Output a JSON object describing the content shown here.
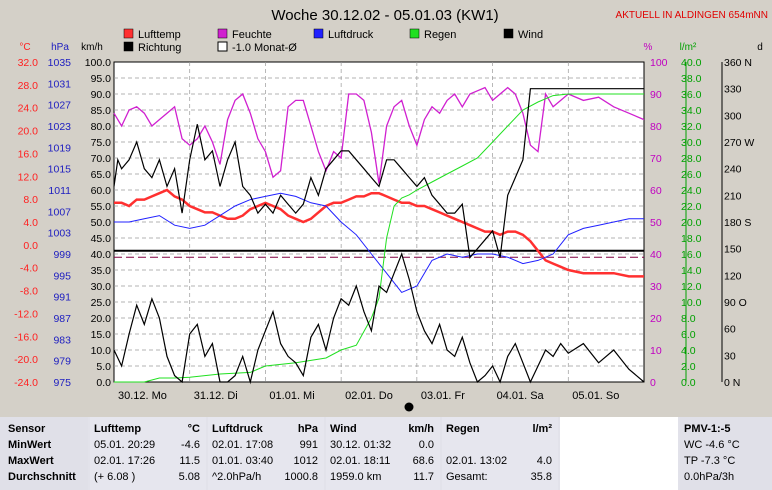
{
  "chart_data": {
    "type": "line",
    "title": "Woche 30.12.02 - 05.01.03 (KW1)",
    "subtitle": "AKTUELL IN ALDINGEN 654mNN",
    "legend": [
      {
        "name": "Lufttemp",
        "color": "#ff3030"
      },
      {
        "name": "Feuchte",
        "color": "#d020d0"
      },
      {
        "name": "Luftdruck",
        "color": "#2020ff"
      },
      {
        "name": "Regen",
        "color": "#20e020"
      },
      {
        "name": "Wind",
        "color": "#000000"
      },
      {
        "name": "Richtung",
        "color": "#000000"
      },
      {
        "name": "-1.0 Monat-Ø",
        "color": "#ffffff"
      }
    ],
    "axes": [
      {
        "unit": "°C",
        "color": "#ff2020",
        "ticks": [
          "32.0",
          "28.0",
          "24.0",
          "20.0",
          "16.0",
          "12.0",
          "8.0",
          "4.0",
          "0.0",
          "-4.0",
          "-8.0",
          "-12.0",
          "-16.0",
          "-20.0",
          "-24.0"
        ]
      },
      {
        "unit": "hPa",
        "color": "#2020c0",
        "ticks": [
          "1035",
          "1031",
          "1027",
          "1023",
          "1019",
          "1015",
          "1011",
          "1007",
          "1003",
          "999",
          "995",
          "991",
          "987",
          "983",
          "979",
          "975"
        ]
      },
      {
        "unit": "km/h",
        "color": "#000000",
        "ticks": [
          "100.0",
          "95.0",
          "90.0",
          "85.0",
          "80.0",
          "75.0",
          "70.0",
          "65.0",
          "60.0",
          "55.0",
          "50.0",
          "45.0",
          "40.0",
          "35.0",
          "30.0",
          "25.0",
          "20.0",
          "15.0",
          "10.0",
          "5.0",
          "0.0"
        ]
      },
      {
        "unit": "%",
        "color": "#c000c0",
        "ticks": [
          "100",
          "90",
          "80",
          "70",
          "60",
          "50",
          "40",
          "30",
          "20",
          "10",
          "0"
        ]
      },
      {
        "unit": "l/m²",
        "color": "#00a000",
        "ticks": [
          "40.0",
          "38.0",
          "36.0",
          "34.0",
          "32.0",
          "30.0",
          "28.0",
          "26.0",
          "24.0",
          "22.0",
          "20.0",
          "18.0",
          "16.0",
          "14.0",
          "12.0",
          "10.0",
          "8.0",
          "6.0",
          "4.0",
          "2.0",
          "0.0"
        ]
      },
      {
        "unit": "d",
        "color": "#000000",
        "ticks": [
          "360 N",
          "330",
          "300",
          "270 W",
          "240",
          "210",
          "180 S",
          "150",
          "120",
          "90 O",
          "60",
          "30",
          "0 N"
        ]
      }
    ],
    "x_ticks": [
      "30.12. Mo",
      "31.12. Di",
      "01.01. Mi",
      "02.01. Do",
      "03.01. Fr",
      "04.01. Sa",
      "05.01. So"
    ],
    "x_range_days": [
      0,
      7
    ],
    "wind_range": [
      0,
      100
    ],
    "reference_wind_level": 41,
    "reference_dashed_level": 39,
    "series": [
      {
        "name": "Lufttemp",
        "unit": "km/h-scale",
        "color": "#ff3030",
        "x": [
          0,
          0.1,
          0.2,
          0.3,
          0.4,
          0.5,
          0.6,
          0.7,
          0.8,
          0.9,
          1.0,
          1.1,
          1.2,
          1.3,
          1.4,
          1.5,
          1.6,
          1.7,
          1.8,
          1.9,
          2.0,
          2.1,
          2.2,
          2.3,
          2.4,
          2.5,
          2.6,
          2.7,
          2.8,
          2.9,
          3.0,
          3.1,
          3.2,
          3.3,
          3.4,
          3.5,
          3.6,
          3.7,
          3.8,
          3.9,
          4.0,
          4.1,
          4.2,
          4.3,
          4.4,
          4.5,
          4.6,
          4.7,
          4.8,
          4.9,
          5.0,
          5.1,
          5.2,
          5.3,
          5.4,
          5.5,
          5.6,
          5.7,
          5.8,
          5.9,
          6.0,
          6.2,
          6.4,
          6.6,
          6.8,
          7.0
        ],
        "y": [
          56,
          56,
          55,
          57,
          57,
          58,
          59,
          60,
          58,
          57,
          55,
          54,
          53,
          53,
          52,
          51,
          51,
          52,
          54,
          55,
          56,
          55,
          54,
          52,
          51,
          50,
          51,
          53,
          55,
          56,
          56,
          57,
          58,
          58,
          59,
          59,
          58,
          57,
          56,
          56,
          55,
          55,
          54,
          53,
          52,
          51,
          50,
          49,
          48,
          47,
          47,
          46,
          47,
          47,
          46,
          44,
          41,
          38,
          37,
          36,
          35,
          34,
          34,
          34,
          33,
          33
        ]
      },
      {
        "name": "Feuchte",
        "unit": "%",
        "color": "#d020d0",
        "x": [
          0,
          0.1,
          0.2,
          0.3,
          0.4,
          0.5,
          0.6,
          0.7,
          0.8,
          0.9,
          1.0,
          1.1,
          1.2,
          1.3,
          1.4,
          1.5,
          1.6,
          1.7,
          1.8,
          1.9,
          2.0,
          2.1,
          2.2,
          2.3,
          2.4,
          2.5,
          2.6,
          2.7,
          2.8,
          2.9,
          3.0,
          3.1,
          3.2,
          3.3,
          3.4,
          3.5,
          3.6,
          3.7,
          3.8,
          3.9,
          4.0,
          4.1,
          4.2,
          4.3,
          4.4,
          4.5,
          4.6,
          4.7,
          4.8,
          4.9,
          5.0,
          5.1,
          5.2,
          5.3,
          5.4,
          5.5,
          5.6,
          5.7,
          5.8,
          5.9,
          6.0,
          6.2,
          6.4,
          6.6,
          6.8,
          7.0
        ],
        "y": [
          84,
          80,
          85,
          86,
          84,
          80,
          82,
          84,
          86,
          76,
          74,
          76,
          80,
          75,
          68,
          82,
          88,
          90,
          84,
          76,
          72,
          64,
          66,
          86,
          88,
          88,
          80,
          72,
          66,
          72,
          70,
          90,
          90,
          88,
          78,
          62,
          80,
          86,
          88,
          80,
          74,
          82,
          86,
          84,
          88,
          90,
          86,
          90,
          91,
          92,
          88,
          90,
          92,
          90,
          84,
          74,
          72,
          90,
          86,
          88,
          90,
          88,
          89,
          86,
          84,
          82
        ]
      },
      {
        "name": "Luftdruck",
        "unit": "km/h-scale",
        "color": "#2020ff",
        "x": [
          0,
          0.2,
          0.4,
          0.6,
          0.8,
          1.0,
          1.2,
          1.4,
          1.6,
          1.8,
          2.0,
          2.2,
          2.4,
          2.6,
          2.8,
          3.0,
          3.2,
          3.4,
          3.6,
          3.8,
          4.0,
          4.2,
          4.4,
          4.6,
          4.8,
          5.0,
          5.2,
          5.4,
          5.6,
          5.8,
          6.0,
          6.2,
          6.4,
          6.6,
          6.8,
          7.0
        ],
        "y": [
          50,
          50,
          51,
          52,
          49,
          48,
          49,
          52,
          55,
          57,
          58,
          59,
          58,
          56,
          55,
          50,
          46,
          40,
          34,
          28,
          30,
          38,
          40,
          39,
          40,
          40,
          39,
          37,
          38,
          40,
          46,
          48,
          49,
          50,
          51,
          51
        ]
      },
      {
        "name": "Regen",
        "unit": "l/m²",
        "color": "#20e020",
        "x": [
          0,
          0.2,
          0.4,
          0.6,
          0.8,
          1.0,
          1.4,
          1.8,
          2.0,
          2.4,
          2.8,
          3.0,
          3.2,
          3.4,
          3.5,
          3.6,
          3.7,
          3.8,
          3.9,
          4.0,
          4.2,
          4.4,
          4.6,
          4.8,
          5.0,
          5.2,
          5.4,
          5.6,
          5.8,
          6.0,
          6.2,
          6.4,
          6.6,
          7.0
        ],
        "y": [
          0.0,
          0.0,
          0.0,
          0.5,
          0.5,
          0.6,
          1.0,
          1.2,
          2.0,
          2.4,
          3.0,
          4.0,
          4.6,
          8.0,
          10.5,
          18.0,
          22.0,
          23.0,
          23.4,
          24.0,
          25.0,
          26.0,
          27.0,
          28.0,
          30.0,
          32.0,
          34.0,
          35.0,
          35.8,
          36.0,
          36.0,
          36.0,
          36.0,
          36.0
        ]
      },
      {
        "name": "Wind",
        "unit": "km/h",
        "color": "#000000",
        "x": [
          0,
          0.1,
          0.2,
          0.3,
          0.4,
          0.5,
          0.6,
          0.7,
          0.8,
          0.9,
          1.0,
          1.1,
          1.2,
          1.3,
          1.4,
          1.5,
          1.6,
          1.7,
          1.8,
          1.9,
          2.0,
          2.1,
          2.2,
          2.3,
          2.4,
          2.5,
          2.6,
          2.7,
          2.8,
          2.9,
          3.0,
          3.1,
          3.2,
          3.3,
          3.4,
          3.5,
          3.6,
          3.7,
          3.8,
          3.9,
          4.0,
          4.1,
          4.2,
          4.3,
          4.4,
          4.5,
          4.6,
          4.7,
          4.8,
          4.9,
          5.0,
          5.1,
          5.2,
          5.3,
          5.4,
          5.5,
          5.6,
          5.7,
          5.8,
          5.9,
          6.0,
          6.2,
          6.4,
          6.6,
          6.8,
          7.0
        ],
        "y": [
          10,
          5,
          15,
          24,
          18,
          26,
          20,
          8,
          2,
          0,
          15,
          18,
          8,
          12,
          0,
          0,
          2,
          8,
          0,
          10,
          16,
          22,
          12,
          8,
          6,
          2,
          14,
          18,
          10,
          20,
          26,
          24,
          30,
          22,
          16,
          30,
          28,
          34,
          40,
          32,
          22,
          16,
          12,
          18,
          10,
          8,
          14,
          6,
          0,
          2,
          5,
          0,
          8,
          12,
          6,
          0,
          5,
          10,
          8,
          12,
          9,
          12,
          6,
          10,
          4,
          0
        ]
      },
      {
        "name": "Richtung",
        "unit": "d",
        "color": "#000000",
        "x": [
          0,
          0.05,
          0.1,
          0.2,
          0.3,
          0.4,
          0.5,
          0.6,
          0.7,
          0.8,
          0.9,
          1.0,
          1.1,
          1.2,
          1.3,
          1.4,
          1.5,
          1.6,
          1.7,
          1.8,
          1.9,
          2.0,
          2.1,
          2.2,
          2.3,
          2.4,
          2.5,
          2.6,
          2.7,
          2.8,
          2.9,
          3.0,
          3.1,
          3.2,
          3.3,
          3.4,
          3.5,
          3.6,
          3.7,
          3.8,
          3.9,
          4.0,
          4.1,
          4.2,
          4.3,
          4.4,
          4.5,
          4.6,
          4.7,
          4.8,
          4.9,
          5.0,
          5.1,
          5.2,
          5.3,
          5.4,
          5.5,
          5.6,
          5.7,
          5.8,
          5.9,
          6.0,
          6.2,
          6.4,
          6.6,
          6.8,
          7.0
        ],
        "y": [
          220,
          250,
          240,
          250,
          270,
          240,
          230,
          250,
          220,
          240,
          190,
          250,
          290,
          250,
          260,
          220,
          250,
          270,
          220,
          210,
          190,
          200,
          190,
          210,
          200,
          190,
          200,
          230,
          210,
          240,
          250,
          260,
          260,
          250,
          240,
          230,
          220,
          250,
          250,
          240,
          230,
          220,
          230,
          210,
          200,
          190,
          190,
          200,
          140,
          150,
          160,
          170,
          140,
          210,
          230,
          250,
          330,
          330,
          330,
          330,
          330,
          330,
          330,
          330,
          330,
          330,
          330
        ]
      }
    ]
  },
  "table": {
    "headers": {
      "sensor": "Sensor",
      "lufttemp": "Lufttemp",
      "lufttemp_unit": "°C",
      "luftdruck": "Luftdruck",
      "luftdruck_unit": "hPa",
      "wind": "Wind",
      "wind_unit": "km/h",
      "regen": "Regen",
      "regen_unit": "l/m²",
      "pmv": "PMV-1:-5"
    },
    "rows": [
      {
        "label": "MinWert",
        "t_date": "05.01.  20:29",
        "t_val": "-4.6",
        "p_date": "02.01.  17:08",
        "p_val": "991",
        "w_date": "30.12.  01:32",
        "w_val": "0.0",
        "r_date": "",
        "r_val": "",
        "pmv": "WC -4.6 °C"
      },
      {
        "label": "MaxWert",
        "t_date": "02.01.  17:26",
        "t_val": "11.5",
        "p_date": "01.01.  03:40",
        "p_val": "1012",
        "w_date": "02.01.  18:11",
        "w_val": "68.6",
        "r_date": "02.01.  13:02",
        "r_val": "4.0",
        "pmv": "TP -7.3 °C"
      },
      {
        "label": "Durchschnitt",
        "t_date": "(+ 6.08 )",
        "t_val": "5.08",
        "p_date": "^2.0hPa/h",
        "p_val": "1000.8",
        "w_date": "1959.0 km",
        "w_val": "11.7",
        "r_date": "Gesamt:",
        "r_val": "35.8",
        "pmv": "0.0hPa/3h"
      }
    ]
  }
}
